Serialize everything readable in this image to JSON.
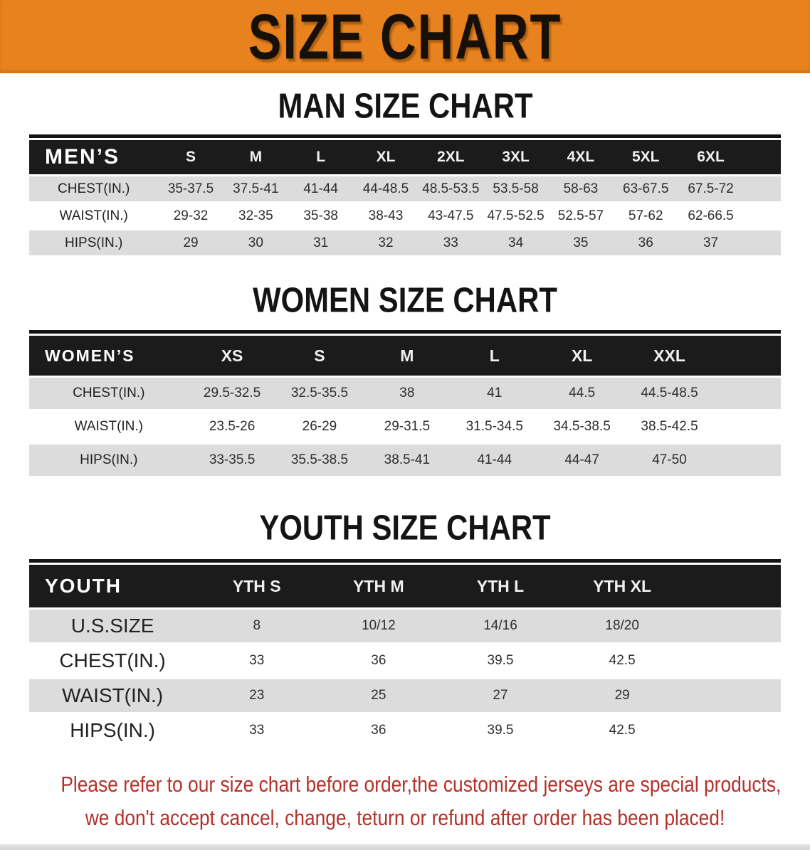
{
  "banner": {
    "title": "SIZE CHART"
  },
  "sections": {
    "men": {
      "title": "MAN SIZE CHART",
      "table": {
        "header": [
          "MEN’S",
          "S",
          "M",
          "L",
          "XL",
          "2XL",
          "3XL",
          "4XL",
          "5XL",
          "6XL"
        ],
        "rows": [
          [
            "CHEST(IN.)",
            "35-37.5",
            "37.5-41",
            "41-44",
            "44-48.5",
            "48.5-53.5",
            "53.5-58",
            "58-63",
            "63-67.5",
            "67.5-72"
          ],
          [
            "WAIST(IN.)",
            "29-32",
            "32-35",
            "35-38",
            "38-43",
            "43-47.5",
            "47.5-52.5",
            "52.5-57",
            "57-62",
            "62-66.5"
          ],
          [
            "HIPS(IN.)",
            "29",
            "30",
            "31",
            "32",
            "33",
            "34",
            "35",
            "36",
            "37"
          ]
        ]
      }
    },
    "women": {
      "title": "WOMEN SIZE CHART",
      "table": {
        "header": [
          "WOMEN’S",
          "XS",
          "S",
          "M",
          "L",
          "XL",
          "XXL"
        ],
        "rows": [
          [
            "CHEST(IN.)",
            "29.5-32.5",
            "32.5-35.5",
            "38",
            "41",
            "44.5",
            "44.5-48.5"
          ],
          [
            "WAIST(IN.)",
            "23.5-26",
            "26-29",
            "29-31.5",
            "31.5-34.5",
            "34.5-38.5",
            "38.5-42.5"
          ],
          [
            "HIPS(IN.)",
            "33-35.5",
            "35.5-38.5",
            "38.5-41",
            "41-44",
            "44-47",
            "47-50"
          ]
        ]
      }
    },
    "youth": {
      "title": "YOUTH SIZE CHART",
      "table": {
        "header": [
          "YOUTH",
          "YTH S",
          "YTH M",
          "YTH L",
          "YTH XL"
        ],
        "rows": [
          [
            "U.S.SIZE",
            "8",
            "10/12",
            "14/16",
            "18/20"
          ],
          [
            "CHEST(IN.)",
            "33",
            "36",
            "39.5",
            "42.5"
          ],
          [
            "WAIST(IN.)",
            "23",
            "25",
            "27",
            "29"
          ],
          [
            "HIPS(IN.)",
            "33",
            "36",
            "39.5",
            "42.5"
          ]
        ]
      }
    }
  },
  "disclaimer": {
    "line1": "Please refer to our size chart before order,the customized jerseys are special products,",
    "line2": "we don't accept cancel, change, teturn or refund after order has been placed!"
  },
  "colors": {
    "banner_orange": "#E8821E",
    "table_header_black": "#1B1B1B",
    "row_gray": "#DCDCDC",
    "disclaimer_red": "#B5302A"
  }
}
